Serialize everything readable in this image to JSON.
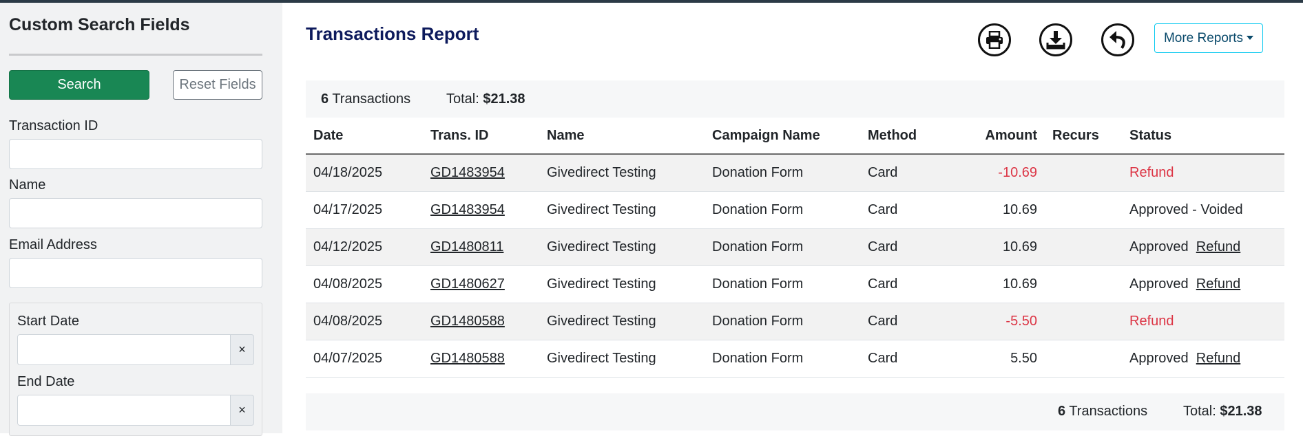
{
  "sidebar": {
    "title": "Custom Search Fields",
    "search_label": "Search",
    "reset_label": "Reset Fields",
    "fields": {
      "transaction_id": {
        "label": "Transaction ID",
        "value": ""
      },
      "name": {
        "label": "Name",
        "value": ""
      },
      "email": {
        "label": "Email Address",
        "value": ""
      },
      "start_date": {
        "label": "Start Date",
        "value": "",
        "clear": "×"
      },
      "end_date": {
        "label": "End Date",
        "value": "",
        "clear": "×"
      }
    }
  },
  "report": {
    "title": "Transactions Report",
    "icons": [
      "print-icon",
      "download-icon",
      "back-icon"
    ],
    "more_reports_label": "More Reports",
    "summary": {
      "count": "6",
      "count_label": "Transactions",
      "total_label": "Total:",
      "total": "$21.38"
    },
    "columns": [
      "Date",
      "Trans. ID",
      "Name",
      "Campaign Name",
      "Method",
      "Amount",
      "Recurs",
      "Status"
    ],
    "rows": [
      {
        "date": "04/18/2025",
        "trans_id": "GD1483954",
        "name": "Givedirect Testing",
        "campaign": "Donation Form",
        "method": "Card",
        "amount": "-10.69",
        "recurs": "",
        "status": "Refund",
        "refund_link": ""
      },
      {
        "date": "04/17/2025",
        "trans_id": "GD1483954",
        "name": "Givedirect Testing",
        "campaign": "Donation Form",
        "method": "Card",
        "amount": "10.69",
        "recurs": "",
        "status": "Approved - Voided",
        "refund_link": ""
      },
      {
        "date": "04/12/2025",
        "trans_id": "GD1480811",
        "name": "Givedirect Testing",
        "campaign": "Donation Form",
        "method": "Card",
        "amount": "10.69",
        "recurs": "",
        "status": "Approved",
        "refund_link": "Refund"
      },
      {
        "date": "04/08/2025",
        "trans_id": "GD1480627",
        "name": "Givedirect Testing",
        "campaign": "Donation Form",
        "method": "Card",
        "amount": "10.69",
        "recurs": "",
        "status": "Approved",
        "refund_link": "Refund"
      },
      {
        "date": "04/08/2025",
        "trans_id": "GD1480588",
        "name": "Givedirect Testing",
        "campaign": "Donation Form",
        "method": "Card",
        "amount": "-5.50",
        "recurs": "",
        "status": "Refund",
        "refund_link": ""
      },
      {
        "date": "04/07/2025",
        "trans_id": "GD1480588",
        "name": "Givedirect Testing",
        "campaign": "Donation Form",
        "method": "Card",
        "amount": "5.50",
        "recurs": "",
        "status": "Approved",
        "refund_link": "Refund"
      }
    ],
    "footer": {
      "count": "6",
      "count_label": "Transactions",
      "total_label": "Total:",
      "total": "$21.38"
    }
  },
  "colors": {
    "accent": "#198754",
    "title": "#0d1a5c",
    "refund": "#dc3545",
    "info_border": "#0dcaf0",
    "topbar": "#2b3a46"
  }
}
